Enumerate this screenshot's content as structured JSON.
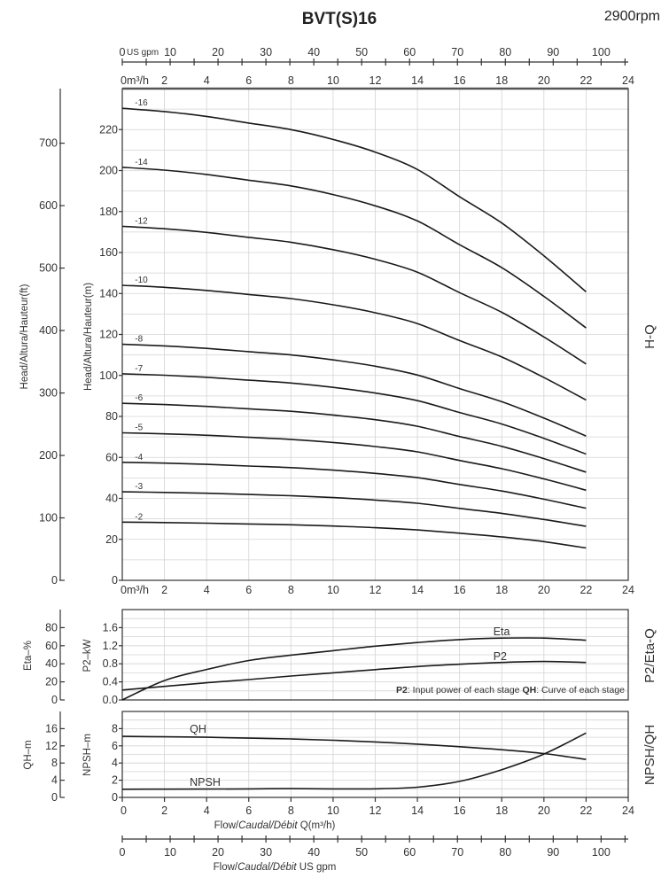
{
  "title": "BVT(S)16",
  "speed": "2900rpm",
  "note": {
    "p2_key": "P2",
    "p2_text": ": Input power of each stage ",
    "qh_key": "QH",
    "qh_text": ": Curve of each stage"
  },
  "side_labels": {
    "hq": "H-Q",
    "p2eta": "P2/Eta-Q",
    "npshqh": "NPSH/QH"
  },
  "flow_axis": {
    "unit_m3h": "m³/h",
    "unit_gpm": "US gpm",
    "ticks_m3h": [
      0,
      2,
      4,
      6,
      8,
      10,
      12,
      14,
      16,
      18,
      20,
      22,
      24
    ],
    "ticks_gpm": [
      0,
      10,
      20,
      30,
      40,
      50,
      60,
      70,
      80,
      90,
      100
    ],
    "bottom_title_prefix": "Flow/",
    "bottom_title_italic": "Caudal/Débit",
    "bottom_title_m3h_suffix": " Q(m³/h)",
    "bottom_title_gpm_suffix": "  US gpm"
  },
  "chart_data": [
    {
      "type": "line",
      "title": "H-Q",
      "xlabel": "Flow/Caudal/Débit Q(m³/h)",
      "ylabel": "Head/Altura/Hauteur(m)",
      "ylabel_secondary": "Head/Altura/Hauteur(ft)",
      "xlim": [
        0,
        24
      ],
      "ylim": [
        0,
        240
      ],
      "yticks": [
        0,
        20,
        40,
        60,
        80,
        100,
        120,
        140,
        160,
        180,
        200,
        220
      ],
      "yticks_secondary": [
        0,
        100,
        200,
        300,
        400,
        500,
        600,
        700
      ],
      "grid": true,
      "x": [
        0,
        2,
        4,
        6,
        8,
        10,
        12,
        14,
        16,
        18,
        20,
        22
      ],
      "series": [
        {
          "name": "-16",
          "values": [
            230.4,
            228.8,
            226.4,
            223.2,
            220,
            215.2,
            209,
            200.5,
            187.2,
            174.4,
            158.4,
            140.8
          ]
        },
        {
          "name": "-14",
          "values": [
            201.6,
            200.2,
            198.1,
            195.3,
            192.5,
            188.3,
            182.8,
            175.4,
            163.8,
            152.6,
            138.6,
            123.2
          ]
        },
        {
          "name": "-12",
          "values": [
            172.8,
            171.6,
            169.8,
            167.4,
            165,
            161.4,
            156.7,
            150.4,
            140.4,
            130.8,
            118.8,
            105.6
          ]
        },
        {
          "name": "-10",
          "values": [
            144,
            143,
            141.5,
            139.5,
            137.5,
            134.5,
            130.6,
            125.3,
            117,
            109,
            99,
            88
          ]
        },
        {
          "name": "-8",
          "values": [
            115.2,
            114.4,
            113.2,
            111.6,
            110,
            107.6,
            104.5,
            100.2,
            93.6,
            87.2,
            79.2,
            70.4
          ]
        },
        {
          "name": "-7",
          "values": [
            100.8,
            100.1,
            99.1,
            97.7,
            96.3,
            94.2,
            91.4,
            87.7,
            81.9,
            76.3,
            69.3,
            61.6
          ]
        },
        {
          "name": "-6",
          "values": [
            86.4,
            85.8,
            84.9,
            83.7,
            82.5,
            80.7,
            78.4,
            75.2,
            70.2,
            65.4,
            59.4,
            52.8
          ]
        },
        {
          "name": "-5",
          "values": [
            72,
            71.5,
            70.8,
            69.8,
            68.8,
            67.3,
            65.3,
            62.7,
            58.5,
            54.5,
            49.5,
            44
          ]
        },
        {
          "name": "-4",
          "values": [
            57.6,
            57.2,
            56.6,
            55.8,
            55,
            53.8,
            52.2,
            50.1,
            46.8,
            43.6,
            39.6,
            35.2
          ]
        },
        {
          "name": "-3",
          "values": [
            43.2,
            42.9,
            42.5,
            41.9,
            41.3,
            40.4,
            39.2,
            37.6,
            35.1,
            32.7,
            29.7,
            26.4
          ]
        },
        {
          "name": "-2",
          "values": [
            28.4,
            28.2,
            27.9,
            27.5,
            27.1,
            26.5,
            25.7,
            24.6,
            23,
            21.2,
            18.9,
            15.8
          ]
        }
      ]
    },
    {
      "type": "line",
      "title": "P2/Eta-Q",
      "ylabel": "P2–kW",
      "ylabel_secondary": "Eta–%",
      "xlim": [
        0,
        24
      ],
      "ylim": [
        0,
        2.0
      ],
      "yticks": [
        "0.0",
        "0.4",
        "0.8",
        "1.2",
        "1.6"
      ],
      "ylim_secondary": [
        0,
        100
      ],
      "yticks_secondary": [
        0,
        20,
        40,
        60,
        80
      ],
      "grid": true,
      "x": [
        0,
        2,
        4,
        6,
        8,
        10,
        12,
        14,
        16,
        18,
        20,
        22
      ],
      "series": [
        {
          "name": "Eta",
          "axis": "secondary",
          "values": [
            0,
            21.5,
            33.7,
            43.6,
            49.6,
            54.5,
            59.5,
            63.5,
            66.8,
            68.4,
            68.4,
            66.1
          ]
        },
        {
          "name": "P2",
          "axis": "primary",
          "values": [
            0.22,
            0.3,
            0.38,
            0.45,
            0.53,
            0.6,
            0.67,
            0.74,
            0.79,
            0.83,
            0.85,
            0.83
          ]
        }
      ]
    },
    {
      "type": "line",
      "title": "NPSH/QH",
      "ylabel": "NPSH–m",
      "ylabel_secondary": "QH–m",
      "xlim": [
        0,
        24
      ],
      "ylim": [
        0,
        10
      ],
      "yticks": [
        0,
        2,
        4,
        6,
        8
      ],
      "ylim_secondary": [
        0,
        20
      ],
      "yticks_secondary": [
        0,
        4,
        8,
        12,
        16
      ],
      "grid": true,
      "x": [
        0,
        2,
        4,
        6,
        8,
        10,
        12,
        14,
        16,
        18,
        20,
        22
      ],
      "series": [
        {
          "name": "QH",
          "axis": "secondary",
          "values": [
            14.2,
            14.1,
            14.0,
            13.8,
            13.6,
            13.3,
            12.9,
            12.4,
            11.8,
            11.1,
            10.2,
            8.85
          ]
        },
        {
          "name": "NPSH",
          "axis": "primary",
          "values": [
            0.95,
            0.96,
            0.97,
            0.99,
            1.02,
            0.99,
            1.0,
            1.19,
            1.87,
            3.23,
            5.04,
            7.49
          ]
        }
      ]
    }
  ]
}
